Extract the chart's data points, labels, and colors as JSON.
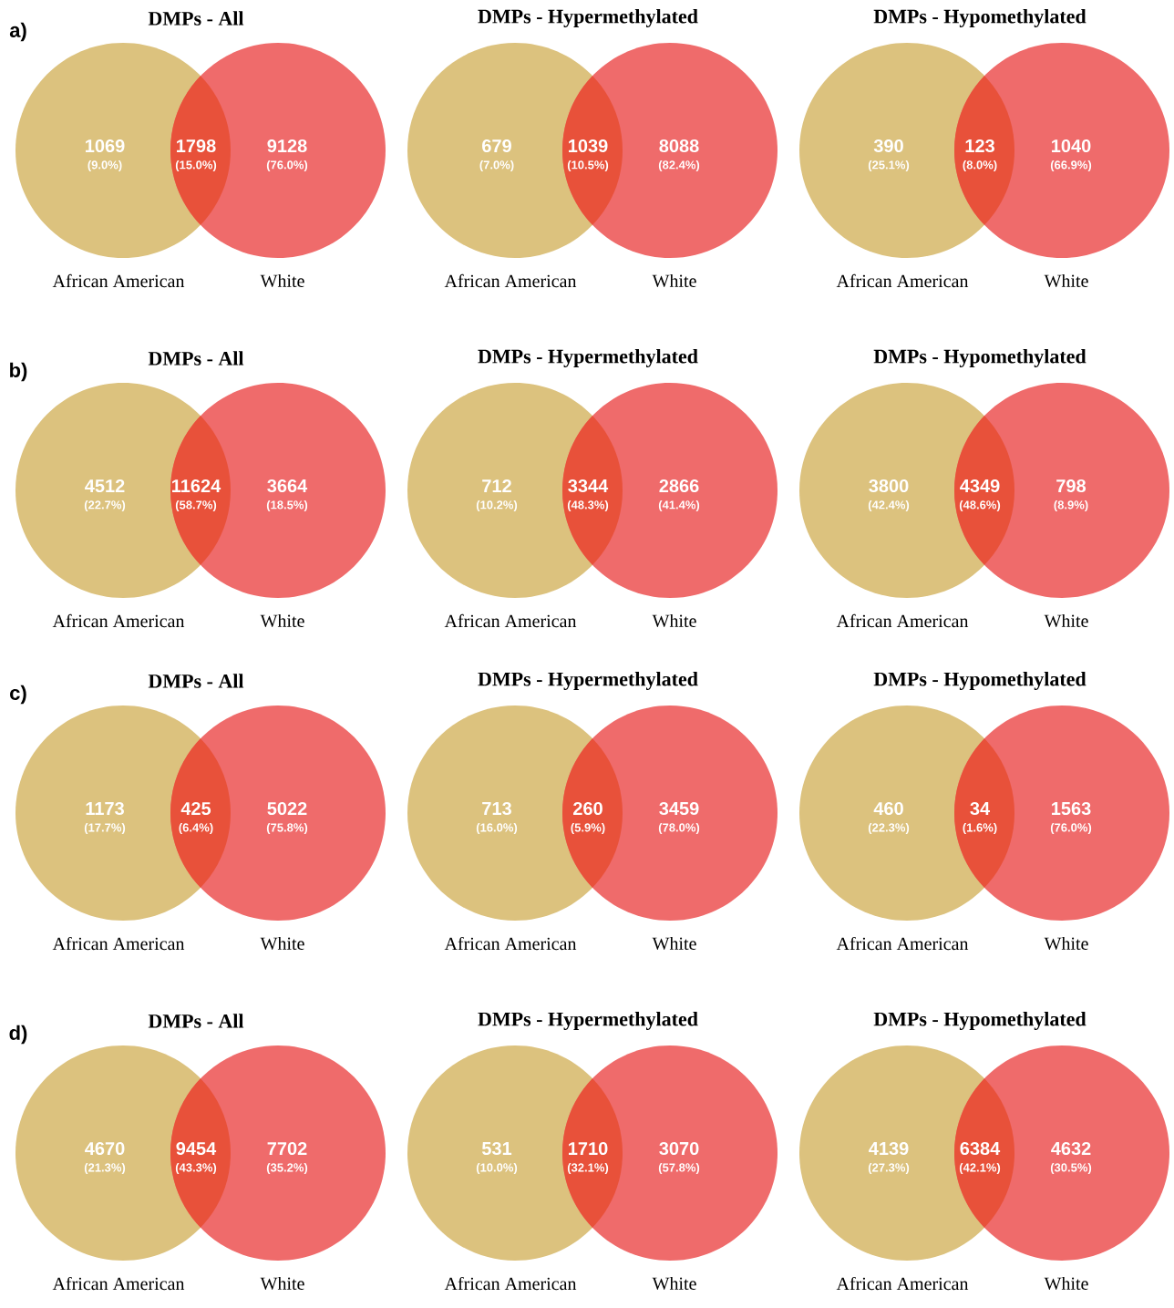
{
  "chart_data": [
    {
      "type": "other",
      "subtitle": "a)",
      "title": "DMPs - All",
      "categories": [
        "African American",
        null,
        "White"
      ],
      "values": [
        1069,
        1798,
        9128
      ],
      "annotations": [
        "(9.0%)",
        "(15.0%)",
        "(76.0%)"
      ],
      "colors": [
        "#dcc27e",
        "#e8513a",
        "#ef6b6b"
      ],
      "data_labels": true
    },
    {
      "type": "other",
      "title": "DMPs - Hypermethylated",
      "categories": [
        "African American",
        null,
        "White"
      ],
      "values": [
        679,
        1039,
        8088
      ],
      "annotations": [
        "(7.0%)",
        "(10.5%)",
        "(82.4%)"
      ],
      "colors": [
        "#dcc27e",
        "#e8513a",
        "#ef6b6b"
      ],
      "data_labels": true
    },
    {
      "type": "other",
      "title": "DMPs - Hypomethylated",
      "categories": [
        "African American",
        null,
        "White"
      ],
      "values": [
        390,
        123,
        1040
      ],
      "annotations": [
        "(25.1%)",
        "(8.0%)",
        "(66.9%)"
      ],
      "colors": [
        "#dcc27e",
        "#e8513a",
        "#ef6b6b"
      ],
      "data_labels": true
    },
    {
      "type": "other",
      "subtitle": "b)",
      "title": "DMPs - All",
      "categories": [
        "African American",
        null,
        "White"
      ],
      "values": [
        4512,
        11624,
        3664
      ],
      "annotations": [
        "(22.7%)",
        "(58.7%)",
        "(18.5%)"
      ],
      "colors": [
        "#dcc27e",
        "#e8513a",
        "#ef6b6b"
      ],
      "data_labels": true
    },
    {
      "type": "other",
      "title": "DMPs - Hypermethylated",
      "categories": [
        "African American",
        null,
        "White"
      ],
      "values": [
        712,
        3344,
        2866
      ],
      "annotations": [
        "(10.2%)",
        "(48.3%)",
        "(41.4%)"
      ],
      "colors": [
        "#dcc27e",
        "#e8513a",
        "#ef6b6b"
      ],
      "data_labels": true
    },
    {
      "type": "other",
      "title": "DMPs - Hypomethylated",
      "categories": [
        "African American",
        null,
        "White"
      ],
      "values": [
        3800,
        4349,
        798
      ],
      "annotations": [
        "(42.4%)",
        "(48.6%)",
        "(8.9%)"
      ],
      "colors": [
        "#dcc27e",
        "#e8513a",
        "#ef6b6b"
      ],
      "data_labels": true
    },
    {
      "type": "other",
      "subtitle": "c)",
      "title": "DMPs - All",
      "categories": [
        "African American",
        null,
        "White"
      ],
      "values": [
        1173,
        425,
        5022
      ],
      "annotations": [
        "(17.7%)",
        "(6.4%)",
        "(75.8%)"
      ],
      "colors": [
        "#dcc27e",
        "#e8513a",
        "#ef6b6b"
      ],
      "data_labels": true
    },
    {
      "type": "other",
      "title": "DMPs - Hypermethylated",
      "categories": [
        "African American",
        null,
        "White"
      ],
      "values": [
        713,
        260,
        3459
      ],
      "annotations": [
        "(16.0%)",
        "(5.9%)",
        "(78.0%)"
      ],
      "colors": [
        "#dcc27e",
        "#e8513a",
        "#ef6b6b"
      ],
      "data_labels": true
    },
    {
      "type": "other",
      "title": "DMPs - Hypomethylated",
      "categories": [
        "African American",
        null,
        "White"
      ],
      "values": [
        460,
        34,
        1563
      ],
      "annotations": [
        "(22.3%)",
        "(1.6%)",
        "(76.0%)"
      ],
      "colors": [
        "#dcc27e",
        "#e8513a",
        "#ef6b6b"
      ],
      "data_labels": true
    },
    {
      "type": "other",
      "subtitle": "d)",
      "title": "DMPs - All",
      "categories": [
        "African American",
        null,
        "White"
      ],
      "values": [
        4670,
        9454,
        7702
      ],
      "annotations": [
        "(21.3%)",
        "(43.3%)",
        "(35.2%)"
      ],
      "colors": [
        "#dcc27e",
        "#e8513a",
        "#ef6b6b"
      ],
      "data_labels": true
    },
    {
      "type": "other",
      "title": "DMPs - Hypermethylated",
      "categories": [
        "African American",
        null,
        "White"
      ],
      "values": [
        531,
        1710,
        3070
      ],
      "annotations": [
        "(10.0%)",
        "(32.1%)",
        "(57.8%)"
      ],
      "colors": [
        "#dcc27e",
        "#e8513a",
        "#ef6b6b"
      ],
      "data_labels": true
    },
    {
      "type": "other",
      "title": "DMPs - Hypomethylated",
      "categories": [
        "African American",
        null,
        "White"
      ],
      "values": [
        4139,
        6384,
        4632
      ],
      "annotations": [
        "(27.3%)",
        "(42.1%)",
        "(30.5%)"
      ],
      "colors": [
        "#dcc27e",
        "#e8513a",
        "#ef6b6b"
      ],
      "data_labels": true
    }
  ]
}
